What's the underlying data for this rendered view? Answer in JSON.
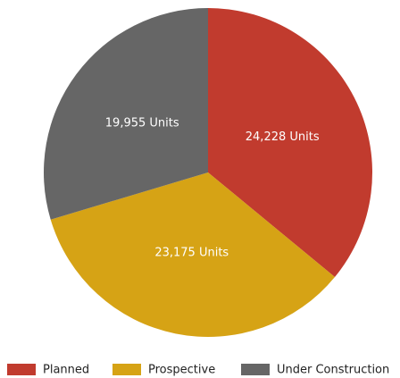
{
  "chart_data": {
    "type": "pie",
    "categories": [
      "Planned",
      "Prospective",
      "Under Construction"
    ],
    "values": [
      24228,
      23175,
      19955
    ],
    "value_labels": [
      "24,228 Units",
      "23,175 Units",
      "19,955 Units"
    ],
    "colors": [
      "#c13b2e",
      "#d6a315",
      "#666666"
    ],
    "legend": "bottom"
  }
}
